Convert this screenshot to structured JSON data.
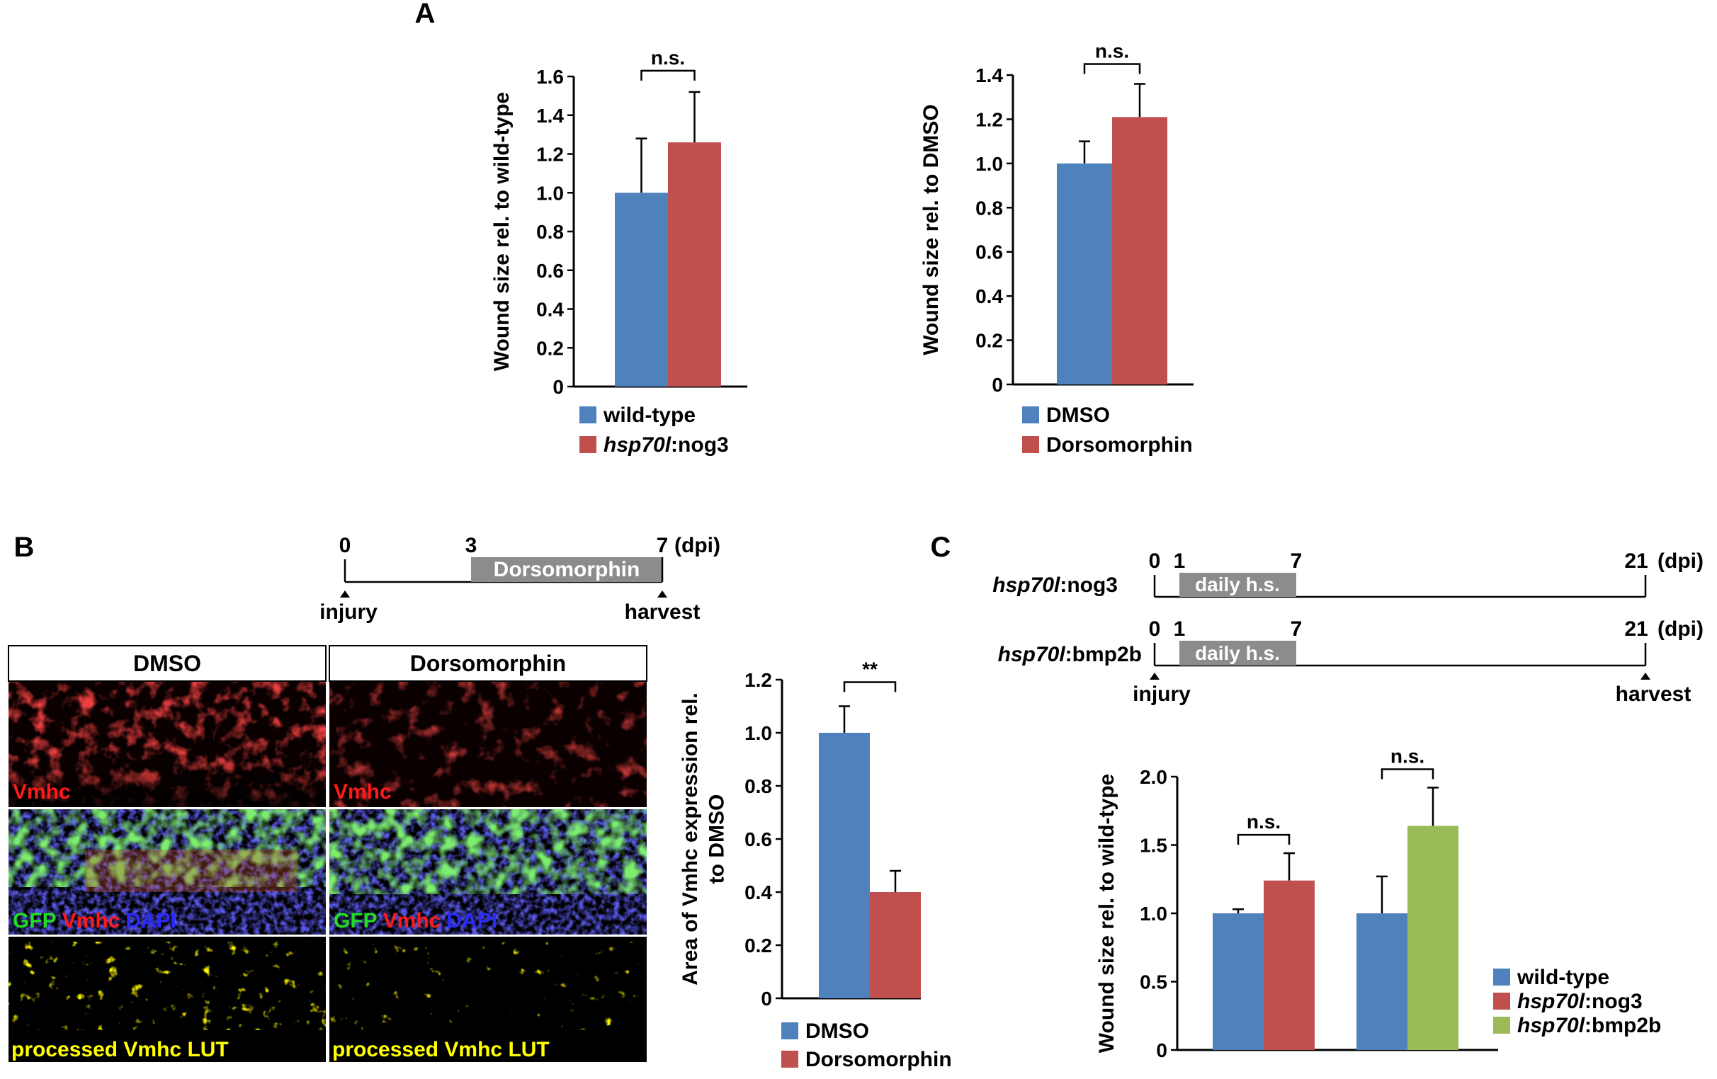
{
  "panel_labels": {
    "a": "A",
    "b": "B",
    "c": "C"
  },
  "colors": {
    "blue": "#4f81bd",
    "red": "#c0504d",
    "green": "#9bbb59",
    "gray": "#8c8c8c"
  },
  "timeline_b": {
    "ticks": [
      "0",
      "3",
      "7"
    ],
    "unit": "(dpi)",
    "box_label": "Dorsomorphin",
    "start_label": "injury",
    "end_label": "harvest"
  },
  "timeline_c": {
    "rows": [
      {
        "label_italic": "hsp70l",
        "label_rest": ":nog3"
      },
      {
        "label_italic": "hsp70l",
        "label_rest": ":bmp2b"
      }
    ],
    "ticks": [
      "0",
      "1",
      "7",
      "21"
    ],
    "unit": "(dpi)",
    "box_label": "daily h.s.",
    "start_label": "injury",
    "end_label": "harvest"
  },
  "micrographs": {
    "columns": [
      "DMSO",
      "Dorsomorphin"
    ],
    "rows": [
      {
        "label": "Vmhc"
      },
      {
        "label_gfp": "GFP",
        "label_vmhc": "Vmhc",
        "label_dapi": "DAPI"
      },
      {
        "label": "processed Vmhc LUT"
      }
    ]
  },
  "chart_data": [
    {
      "id": "A-left",
      "type": "bar",
      "ylabel": "Wound size rel. to wild-type",
      "ylim": [
        0,
        1.6
      ],
      "yticks": [
        "0",
        "0.2",
        "0.4",
        "0.6",
        "0.8",
        "1.0",
        "1.2",
        "1.4",
        "1.6"
      ],
      "series": [
        {
          "name": "wild-type",
          "value": 1.0,
          "error": 0.28,
          "color": "#4f81bd"
        },
        {
          "name_italic": "hsp70l",
          "name": ":nog3",
          "value": 1.26,
          "error": 0.26,
          "color": "#c0504d"
        }
      ],
      "significance": [
        {
          "label": "n.s."
        }
      ]
    },
    {
      "id": "A-right",
      "type": "bar",
      "ylabel": "Wound size rel. to DMSO",
      "ylim": [
        0,
        1.4
      ],
      "yticks": [
        "0",
        "0.2",
        "0.4",
        "0.6",
        "0.8",
        "1.0",
        "1.2",
        "1.4"
      ],
      "series": [
        {
          "name": "DMSO",
          "value": 1.0,
          "error": 0.1,
          "color": "#4f81bd"
        },
        {
          "name": "Dorsomorphin",
          "value": 1.21,
          "error": 0.15,
          "color": "#c0504d"
        }
      ],
      "significance": [
        {
          "label": "n.s."
        }
      ]
    },
    {
      "id": "B",
      "type": "bar",
      "ylabel": "Area of Vmhc expression rel. to DMSO",
      "ylabel_lines": [
        "Area of Vmhc expression rel.",
        "to DMSO"
      ],
      "ylim": [
        0,
        1.2
      ],
      "yticks": [
        "0",
        "0.2",
        "0.4",
        "0.6",
        "0.8",
        "1.0",
        "1.2"
      ],
      "series": [
        {
          "name": "DMSO",
          "value": 1.0,
          "error": 0.1,
          "color": "#4f81bd"
        },
        {
          "name": "Dorsomorphin",
          "value": 0.4,
          "error": 0.08,
          "color": "#c0504d"
        }
      ],
      "significance": [
        {
          "label": "**"
        }
      ]
    },
    {
      "id": "C",
      "type": "bar",
      "ylabel": "Wound size rel. to wild-type",
      "ylim": [
        0,
        2.0
      ],
      "yticks": [
        "0",
        "0.5",
        "1.0",
        "1.5",
        "2.0"
      ],
      "groups": [
        {
          "bars": [
            {
              "series": 0,
              "value": 1.0,
              "error": 0.03
            },
            {
              "series": 1,
              "value": 1.24,
              "error": 0.2
            }
          ],
          "significance": "n.s."
        },
        {
          "bars": [
            {
              "series": 0,
              "value": 1.0,
              "error": 0.27
            },
            {
              "series": 2,
              "value": 1.64,
              "error": 0.28
            }
          ],
          "significance": "n.s."
        }
      ],
      "series": [
        {
          "name": "wild-type",
          "color": "#4f81bd"
        },
        {
          "name_italic": "hsp70l",
          "name": ":nog3",
          "color": "#c0504d"
        },
        {
          "name_italic": "hsp70l",
          "name": ":bmp2b",
          "color": "#9bbb59"
        }
      ]
    }
  ]
}
